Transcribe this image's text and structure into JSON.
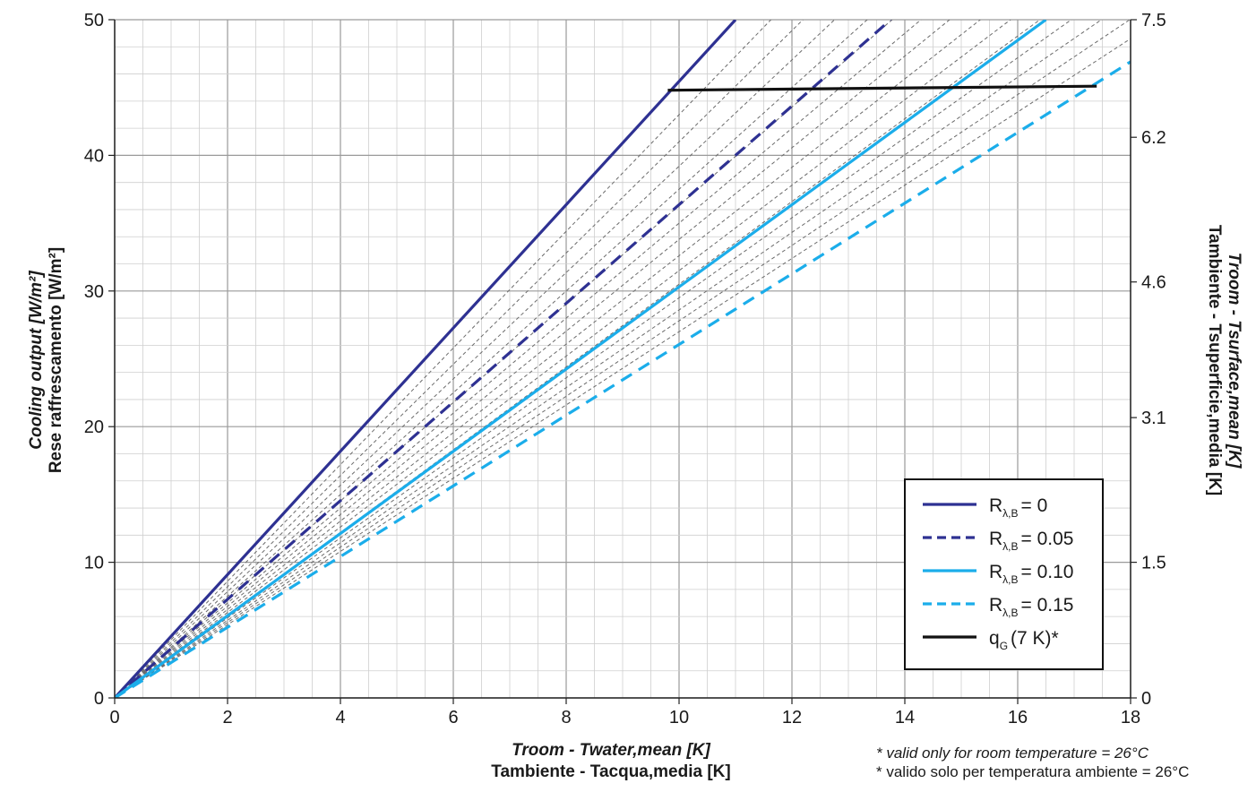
{
  "chart_data": {
    "type": "line",
    "x_label_en": "Troom - Twater,mean [K]",
    "x_label_it": "Tambiente - Tacqua,media [K]",
    "y_label_en": "Cooling output [W/m²]",
    "y_label_it": "Rese raffrescamento [W/m²]",
    "y2_label_en": "Troom - Tsurface,mean [K]",
    "y2_label_it": "Tambiente - Tsuperficie,media [K]",
    "x_ticks": [
      "0",
      "2",
      "4",
      "6",
      "8",
      "10",
      "12",
      "14",
      "16",
      "18"
    ],
    "y_ticks": [
      "0",
      "10",
      "20",
      "30",
      "40",
      "50"
    ],
    "y2_ticks": [
      "0",
      "1.5",
      "3.1",
      "4.6",
      "6.2",
      "7.5"
    ],
    "xlim": [
      0,
      18
    ],
    "ylim": [
      0,
      50
    ],
    "y2lim": [
      0,
      7.5
    ],
    "grid": true,
    "legend_position": "bottom-right",
    "notes": {
      "en": "* valid only for room temperature = 26°C",
      "it": "* valido solo per temperatura ambiente = 26°C"
    },
    "series": [
      {
        "name": "RλB = 0",
        "legend_sub": "λ,B",
        "legend_value": "= 0",
        "style": "solid",
        "color": "#2e3192",
        "x": [
          0,
          11.0
        ],
        "y": [
          0,
          50
        ]
      },
      {
        "name": "RλB = 0.05",
        "legend_sub": "λ,B",
        "legend_value": "= 0.05",
        "style": "dashed",
        "color": "#2e3192",
        "x": [
          0,
          13.75
        ],
        "y": [
          0,
          50
        ]
      },
      {
        "name": "RλB = 0.10",
        "legend_sub": "λ,B",
        "legend_value": "= 0.10",
        "style": "solid",
        "color": "#1badea",
        "x": [
          0,
          16.5
        ],
        "y": [
          0,
          50
        ]
      },
      {
        "name": "RλB = 0.15",
        "legend_sub": "λ,B",
        "legend_value": "= 0.15",
        "style": "dashed",
        "color": "#1badea",
        "x": [
          0,
          18.0
        ],
        "y": [
          0,
          46.9
        ]
      },
      {
        "name": "qG (7 K)*",
        "legend_sub": "G",
        "legend_value": "(7 K)*",
        "style": "solid",
        "color": "#111111",
        "x": [
          9.8,
          17.4
        ],
        "y": [
          44.8,
          45.1
        ]
      }
    ],
    "helper_line_slopes": [
      4.55,
      4.3,
      4.1,
      3.92,
      3.75,
      3.63,
      3.5,
      3.38,
      3.26,
      3.15,
      3.05,
      2.95,
      2.86,
      2.78,
      2.7
    ]
  },
  "colors": {
    "dark_blue": "#2e3192",
    "light_blue": "#1badea",
    "grid_major": "#9a9a9a",
    "grid_minor": "#cfcfcf",
    "helper": "#6b6b6b"
  }
}
